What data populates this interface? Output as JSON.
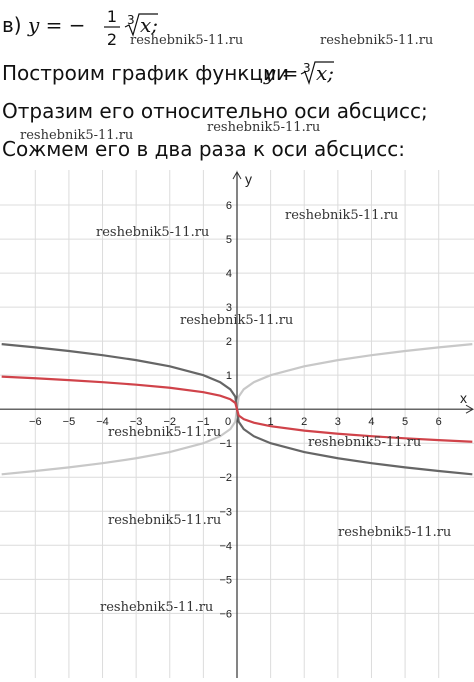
{
  "line1": {
    "label": "в)",
    "lhs": "y = −",
    "numerator": "1",
    "denominator": "2",
    "root_index": "3",
    "radicand": "x;"
  },
  "line2": {
    "text": "Построим график функции",
    "lhs": "y =",
    "root_index": "3",
    "radicand": "x;"
  },
  "line3": "Отразим его относительно оси абсцисс;",
  "line4": "Сожмем его в два раза к оси абсцисс:",
  "watermark": "reshebnik5-11.ru",
  "chart_data": {
    "type": "line",
    "x_label": "x",
    "y_label": "y",
    "x": [
      -7,
      -6,
      -5,
      -4,
      -3,
      -2,
      -1,
      -0.5,
      -0.2,
      -0.05,
      0,
      0.05,
      0.2,
      0.5,
      1,
      2,
      3,
      4,
      5,
      6,
      7
    ],
    "series": [
      {
        "color": "#c8c8c8",
        "values": [
          -1.913,
          -1.817,
          -1.71,
          -1.587,
          -1.442,
          -1.26,
          -1,
          -0.794,
          -0.585,
          -0.368,
          0,
          0.368,
          0.585,
          0.794,
          1,
          1.26,
          1.442,
          1.587,
          1.71,
          1.817,
          1.913
        ]
      },
      {
        "color": "#666666",
        "values": [
          1.913,
          1.817,
          1.71,
          1.587,
          1.442,
          1.26,
          1,
          0.794,
          0.585,
          0.368,
          0,
          -0.368,
          -0.585,
          -0.794,
          -1,
          -1.26,
          -1.442,
          -1.587,
          -1.71,
          -1.817,
          -1.913
        ]
      },
      {
        "color": "#d0434a",
        "values": [
          0.957,
          0.909,
          0.855,
          0.794,
          0.721,
          0.63,
          0.5,
          0.397,
          0.292,
          0.184,
          0,
          -0.184,
          -0.292,
          -0.397,
          -0.5,
          -0.63,
          -0.721,
          -0.794,
          -0.855,
          -0.909,
          -0.957
        ]
      }
    ],
    "xlim": [
      -7.05,
      7.05
    ],
    "ylim": [
      -7.9,
      7.03
    ],
    "xticks": [
      {
        "value": -6,
        "label": "−6"
      },
      {
        "value": -5,
        "label": "−5"
      },
      {
        "value": -4,
        "label": "−4"
      },
      {
        "value": -3,
        "label": "−3"
      },
      {
        "value": -2,
        "label": "−2"
      },
      {
        "value": -1,
        "label": "−1"
      },
      0,
      1,
      2,
      3,
      4,
      5,
      6
    ],
    "yticks": [
      {
        "value": -6,
        "label": "−6"
      },
      {
        "value": -5,
        "label": "−5"
      },
      {
        "value": -4,
        "label": "−4"
      },
      {
        "value": -3,
        "label": "−3"
      },
      {
        "value": -2,
        "label": "−2"
      },
      {
        "value": -1,
        "label": "−1"
      },
      1,
      2,
      3,
      4,
      5,
      6
    ],
    "grid": true
  }
}
